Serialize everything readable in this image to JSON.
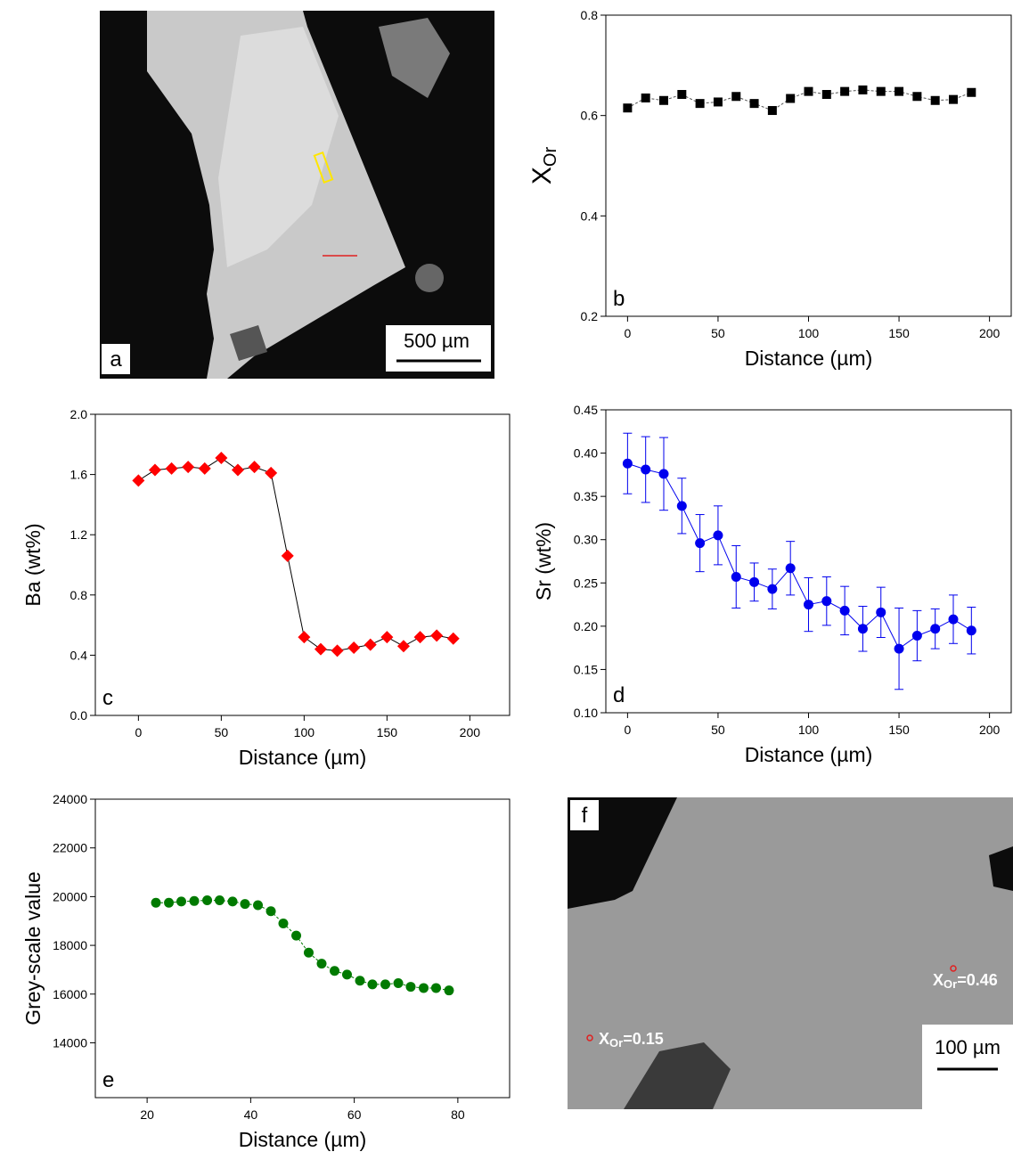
{
  "images": [
    {
      "label": "a",
      "scale": "500 µm"
    },
    {
      "label": "f",
      "scale": "100 µm",
      "annotations": [
        {
          "text": "X",
          "sub": "Or",
          "value": "=0.15"
        },
        {
          "text": "X",
          "sub": "Or",
          "value": "=0.46"
        }
      ]
    }
  ],
  "chart_data": [
    {
      "type": "line",
      "label": "b",
      "xlabel": "Distance (µm)",
      "ylabel": "X",
      "ylabel_sub": "Or",
      "xlim": [
        -12,
        212
      ],
      "xticks": [
        0,
        50,
        100,
        150,
        200
      ],
      "ylim": [
        0.2,
        0.8
      ],
      "yticks": [
        0.2,
        0.4,
        0.6,
        0.8
      ],
      "x": [
        0,
        10,
        20,
        30,
        40,
        50,
        60,
        70,
        80,
        90,
        100,
        110,
        120,
        130,
        140,
        150,
        160,
        170,
        180,
        190
      ],
      "series": [
        {
          "color": "#000000",
          "marker": "square",
          "line_color": "#555555",
          "dashed": true,
          "values": [
            0.615,
            0.635,
            0.63,
            0.642,
            0.624,
            0.627,
            0.638,
            0.624,
            0.61,
            0.634,
            0.648,
            0.642,
            0.648,
            0.651,
            0.648,
            0.648,
            0.638,
            0.63,
            0.632,
            0.646
          ]
        }
      ]
    },
    {
      "type": "line",
      "label": "c",
      "xlabel": "Distance (µm)",
      "ylabel": "Ba (wt%)",
      "xlim": [
        -26,
        224
      ],
      "xticks": [
        0,
        50,
        100,
        150,
        200
      ],
      "ylim": [
        0,
        2.0
      ],
      "yticks": [
        {
          "value": 0,
          "label": "0.0"
        },
        0.4,
        0.8,
        1.2,
        1.6,
        {
          "value": 2.0,
          "label": "2.0"
        }
      ],
      "x": [
        0,
        10,
        20,
        30,
        40,
        50,
        60,
        70,
        80,
        90,
        100,
        110,
        120,
        130,
        140,
        150,
        160,
        170,
        180,
        190
      ],
      "series": [
        {
          "color": "#ff0000",
          "marker": "diamond",
          "line_color": "#000000",
          "dashed": false,
          "values": [
            1.56,
            1.63,
            1.64,
            1.65,
            1.64,
            1.71,
            1.63,
            1.65,
            1.61,
            1.06,
            0.52,
            0.44,
            0.43,
            0.45,
            0.47,
            0.52,
            0.46,
            0.52,
            0.53,
            0.51
          ]
        }
      ]
    },
    {
      "type": "line",
      "label": "d",
      "xlabel": "Distance (µm)",
      "ylabel": "Sr (wt%)",
      "xlim": [
        -12,
        212
      ],
      "xticks": [
        0,
        50,
        100,
        150,
        200
      ],
      "ylim": [
        0.1,
        0.45
      ],
      "yticks": [
        {
          "value": 0.1,
          "label": "0.10"
        },
        0.15,
        {
          "value": 0.2,
          "label": "0.20"
        },
        0.25,
        {
          "value": 0.3,
          "label": "0.30"
        },
        0.35,
        {
          "value": 0.4,
          "label": "0.40"
        },
        0.45
      ],
      "x": [
        0,
        10,
        20,
        30,
        40,
        50,
        60,
        70,
        80,
        90,
        100,
        110,
        120,
        130,
        140,
        150,
        160,
        170,
        180,
        190
      ],
      "series": [
        {
          "color": "#0000ee",
          "marker": "circle",
          "line_color": "#0000ee",
          "dashed": false,
          "values": [
            0.388,
            0.381,
            0.376,
            0.339,
            0.296,
            0.305,
            0.257,
            0.251,
            0.243,
            0.267,
            0.225,
            0.229,
            0.218,
            0.197,
            0.216,
            0.174,
            0.189,
            0.197,
            0.208,
            0.195
          ],
          "errors": [
            0.035,
            0.038,
            0.042,
            0.032,
            0.033,
            0.034,
            0.036,
            0.022,
            0.023,
            0.031,
            0.031,
            0.028,
            0.028,
            0.026,
            0.029,
            0.047,
            0.029,
            0.023,
            0.028,
            0.027
          ]
        }
      ]
    },
    {
      "type": "line",
      "label": "e",
      "xlabel": "Distance (µm)",
      "ylabel": "Grey-scale value",
      "xlim": [
        10,
        90
      ],
      "xticks": [
        20,
        40,
        60,
        80
      ],
      "ylim": [
        11750,
        24000
      ],
      "yticks": [
        14000,
        16000,
        18000,
        20000,
        22000,
        24000
      ],
      "x": [
        21.7,
        24.2,
        26.6,
        29.1,
        31.6,
        34.0,
        36.5,
        38.9,
        41.4,
        43.9,
        46.3,
        48.8,
        51.2,
        53.7,
        56.2,
        58.6,
        61.1,
        63.5,
        66.0,
        68.5,
        70.9,
        73.4,
        75.8,
        78.3
      ],
      "series": [
        {
          "color": "#007a00",
          "marker": "circle",
          "line_color": "#007a00",
          "dashed": true,
          "values": [
            19750,
            19750,
            19800,
            19820,
            19850,
            19850,
            19800,
            19700,
            19650,
            19400,
            18900,
            18400,
            17700,
            17250,
            16950,
            16800,
            16550,
            16400,
            16400,
            16450,
            16300,
            16250,
            16250,
            16150
          ]
        }
      ]
    }
  ]
}
